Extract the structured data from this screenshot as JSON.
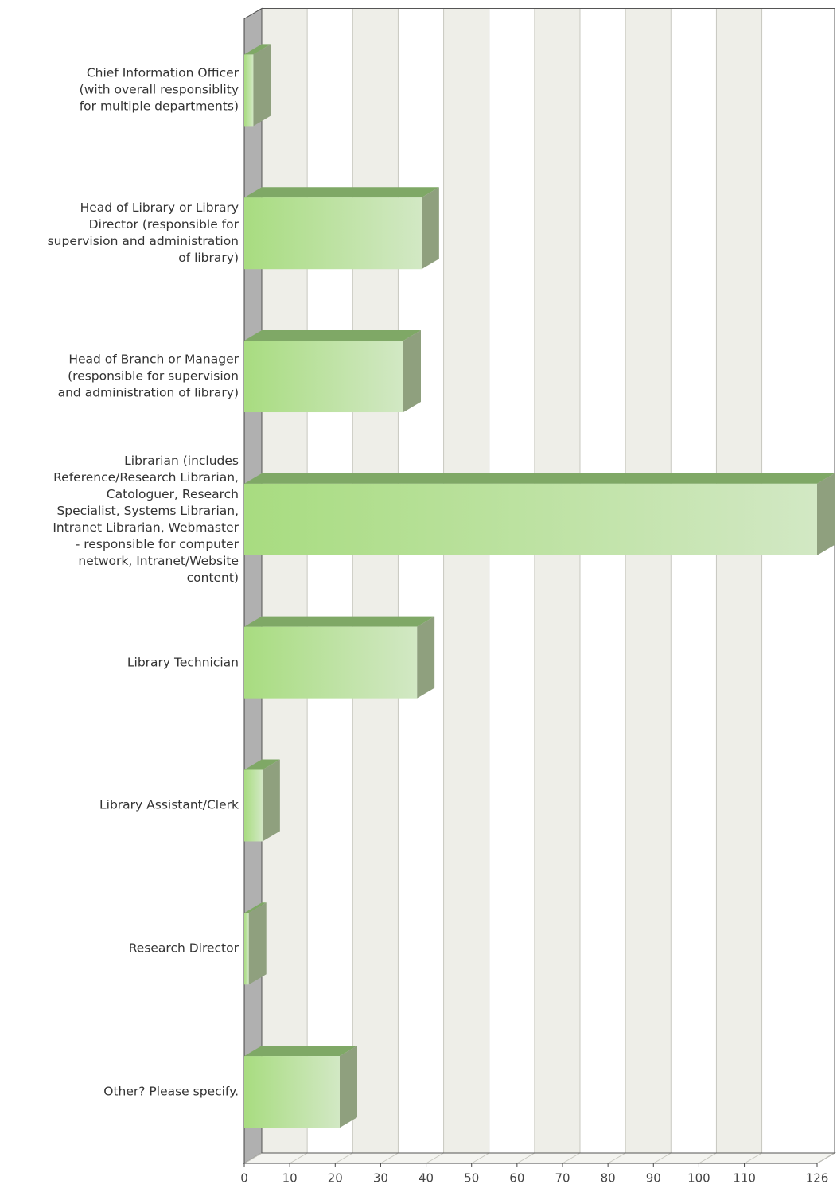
{
  "chart_data": {
    "type": "bar",
    "orientation": "horizontal",
    "categories": [
      "Chief Information Officer\n(with overall responsiblity\nfor multiple departments)",
      "Head of Library or Library\nDirector (responsible for\nsupervision and administration\nof library)",
      "Head of Branch or Manager\n(responsible for supervision\nand administration of library)",
      "Librarian (includes\nReference/Research Librarian,\nCatologuer, Research\nSpecialist, Systems Librarian,\nIntranet Librarian, Webmaster\n- responsible for computer\nnetwork, Intranet/Website\ncontent)",
      "Library Technician",
      "Library Assistant/Clerk",
      "Research Director",
      "Other? Please specify."
    ],
    "values": [
      2,
      39,
      35,
      126,
      38,
      4,
      1,
      21
    ],
    "color": "#a8dc80",
    "xlim": [
      0,
      126
    ],
    "xticks": [
      0,
      10,
      20,
      30,
      40,
      50,
      60,
      70,
      80,
      90,
      100,
      110,
      126
    ],
    "grid": true
  }
}
